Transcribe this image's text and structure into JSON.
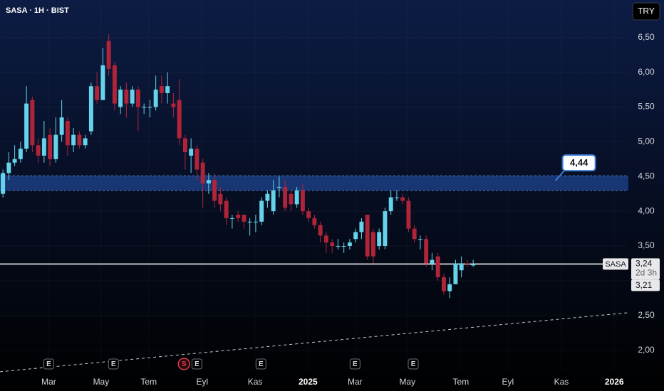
{
  "chart_data": {
    "type": "candlestick",
    "title": "SASA · 1H · BIST",
    "currency": "TRY",
    "x": [
      0,
      1,
      2,
      3,
      4,
      5,
      6,
      7,
      8,
      9,
      10,
      11,
      12,
      13,
      14,
      15,
      16,
      17,
      18,
      19,
      20,
      21,
      22,
      23,
      24,
      25,
      26,
      27,
      28,
      29,
      30,
      31,
      32,
      33,
      34,
      35,
      36,
      37,
      38,
      39,
      40,
      41,
      42,
      43,
      44,
      45,
      46,
      47,
      48,
      49,
      50,
      51,
      52,
      53,
      54,
      55,
      56,
      57,
      58,
      59,
      60,
      61,
      62,
      63,
      64,
      65,
      66,
      67,
      68,
      69,
      70,
      71,
      72,
      73,
      74,
      75,
      76,
      77,
      78,
      79,
      80
    ],
    "open": [
      4.25,
      4.55,
      4.7,
      4.75,
      4.9,
      5.6,
      4.95,
      4.8,
      5.1,
      4.75,
      5.1,
      5.3,
      4.95,
      5.1,
      4.95,
      5.15,
      5.8,
      5.6,
      6.45,
      6.1,
      5.5,
      5.75,
      5.55,
      5.75,
      5.5,
      5.5,
      5.5,
      5.8,
      5.7,
      5.55,
      5.6,
      5.05,
      4.8,
      4.9,
      4.7,
      4.4,
      4.45,
      4.25,
      4.15,
      3.9,
      3.95,
      3.95,
      3.85,
      3.85,
      3.85,
      4.15,
      4.0,
      4.35,
      4.35,
      4.25,
      4.1,
      4.3,
      4.0,
      3.9,
      3.8,
      3.65,
      3.55,
      3.5,
      3.5,
      3.5,
      3.6,
      3.7,
      3.95,
      3.7,
      3.5,
      3.5,
      4.0,
      4.2,
      4.2,
      4.15,
      3.75,
      3.6,
      3.6,
      3.25,
      3.35,
      3.05,
      2.85,
      2.95,
      3.15,
      3.25,
      3.22
    ],
    "high": [
      4.6,
      4.85,
      4.95,
      5.0,
      5.8,
      5.65,
      5.05,
      5.3,
      5.2,
      5.35,
      5.6,
      5.35,
      5.2,
      5.15,
      5.1,
      5.85,
      6.0,
      6.35,
      6.55,
      6.15,
      5.8,
      5.85,
      5.8,
      5.8,
      5.55,
      5.6,
      5.95,
      5.95,
      6.0,
      5.7,
      5.9,
      5.1,
      5.05,
      4.95,
      4.75,
      4.55,
      4.55,
      4.35,
      4.2,
      3.95,
      4.0,
      3.95,
      3.9,
      3.95,
      4.2,
      4.3,
      4.45,
      4.5,
      4.45,
      4.3,
      4.35,
      4.4,
      4.05,
      3.95,
      3.85,
      3.7,
      3.6,
      3.6,
      3.55,
      3.6,
      3.75,
      3.9,
      3.95,
      3.75,
      3.75,
      4.05,
      4.3,
      4.3,
      4.25,
      4.2,
      3.8,
      3.65,
      3.65,
      3.4,
      3.4,
      3.1,
      3.05,
      3.3,
      3.35,
      3.3,
      3.3
    ],
    "low": [
      4.2,
      4.45,
      4.65,
      4.7,
      4.85,
      4.85,
      4.7,
      4.7,
      4.65,
      4.7,
      5.0,
      4.8,
      4.85,
      4.9,
      4.9,
      5.1,
      5.55,
      5.6,
      5.95,
      5.45,
      5.4,
      5.35,
      5.5,
      5.15,
      5.4,
      5.35,
      5.45,
      5.55,
      5.55,
      5.35,
      4.95,
      4.6,
      4.55,
      4.45,
      4.05,
      4.25,
      4.05,
      4.0,
      3.8,
      3.75,
      3.85,
      3.75,
      3.65,
      3.7,
      3.8,
      4.05,
      3.95,
      4.2,
      4.0,
      4.0,
      4.05,
      3.95,
      3.85,
      3.75,
      3.55,
      3.4,
      3.4,
      3.45,
      3.4,
      3.45,
      3.55,
      3.6,
      3.3,
      3.25,
      3.45,
      3.45,
      3.95,
      4.15,
      4.1,
      3.7,
      3.55,
      3.45,
      3.2,
      3.15,
      3.0,
      2.8,
      2.75,
      2.95,
      3.05,
      3.2,
      3.2
    ],
    "close": [
      4.55,
      4.7,
      4.75,
      4.9,
      5.55,
      4.95,
      4.8,
      5.05,
      4.75,
      5.1,
      5.35,
      4.95,
      5.1,
      4.95,
      5.05,
      5.8,
      5.6,
      6.1,
      6.05,
      5.55,
      5.75,
      5.55,
      5.75,
      5.5,
      5.5,
      5.5,
      5.75,
      5.7,
      5.8,
      5.5,
      5.05,
      4.85,
      4.9,
      4.6,
      4.4,
      4.45,
      4.15,
      4.1,
      3.9,
      3.9,
      3.9,
      3.85,
      3.85,
      3.85,
      4.15,
      4.25,
      4.3,
      4.35,
      4.05,
      4.1,
      4.3,
      4.0,
      3.9,
      3.8,
      3.65,
      3.55,
      3.5,
      3.5,
      3.5,
      3.55,
      3.7,
      3.85,
      3.35,
      3.35,
      3.7,
      4.0,
      4.2,
      4.2,
      4.15,
      3.75,
      3.6,
      3.6,
      3.25,
      3.3,
      3.05,
      2.85,
      2.95,
      3.25,
      3.25,
      3.24,
      3.24
    ],
    "up_color": "#67d3ea",
    "down_color": "#b0243a",
    "xlim": [
      -0.5,
      106.4
    ],
    "xticks": [
      {
        "value": 7.8,
        "label": "Mar"
      },
      {
        "value": 16.7,
        "label": "May"
      },
      {
        "value": 24.8,
        "label": "Tem"
      },
      {
        "value": 33.9,
        "label": "Eyl"
      },
      {
        "value": 42.9,
        "label": "Kas"
      },
      {
        "value": 51.9,
        "label": "2025"
      },
      {
        "value": 59.9,
        "label": "Mar"
      },
      {
        "value": 68.8,
        "label": "May"
      },
      {
        "value": 77.9,
        "label": "Tem"
      },
      {
        "value": 85.9,
        "label": "Eyl"
      },
      {
        "value": 95.0,
        "label": "Kas"
      },
      {
        "value": 104.0,
        "label": "2026"
      }
    ],
    "ylim": [
      1.72,
      7.04
    ],
    "yticks": [
      {
        "value": 2.0,
        "label": "2,00"
      },
      {
        "value": 2.5,
        "label": "2,50"
      },
      {
        "value": 3.0,
        "label": "3,00"
      },
      {
        "value": 3.5,
        "label": "3,50"
      },
      {
        "value": 4.0,
        "label": "4,00"
      },
      {
        "value": 4.5,
        "label": "4,50"
      },
      {
        "value": 5.0,
        "label": "5,00"
      },
      {
        "value": 5.5,
        "label": "5,50"
      },
      {
        "value": 6.0,
        "label": "6,00"
      },
      {
        "value": 6.5,
        "label": "6,50"
      }
    ],
    "zone": [
      4.3,
      4.51
    ],
    "callout": {
      "x": 94,
      "value": 4.44,
      "label": "4,44"
    },
    "trendline": {
      "x": [
        -0.5,
        106.4
      ],
      "y": [
        1.69,
        2.54
      ]
    },
    "last_price": {
      "name": "SASA",
      "value": 3.24,
      "label": "3,24",
      "countdown": "2d 3h"
    },
    "prev_close": {
      "value": 3.21,
      "label": "3,21"
    },
    "events": [
      {
        "x": 7.8,
        "label": "E"
      },
      {
        "x": 18.8,
        "label": "E"
      },
      {
        "x": 30.8,
        "label": "S"
      },
      {
        "x": 33.0,
        "label": "E"
      },
      {
        "x": 43.9,
        "label": "E"
      },
      {
        "x": 59.9,
        "label": "E"
      },
      {
        "x": 69.8,
        "label": "E"
      }
    ],
    "grid": true
  }
}
